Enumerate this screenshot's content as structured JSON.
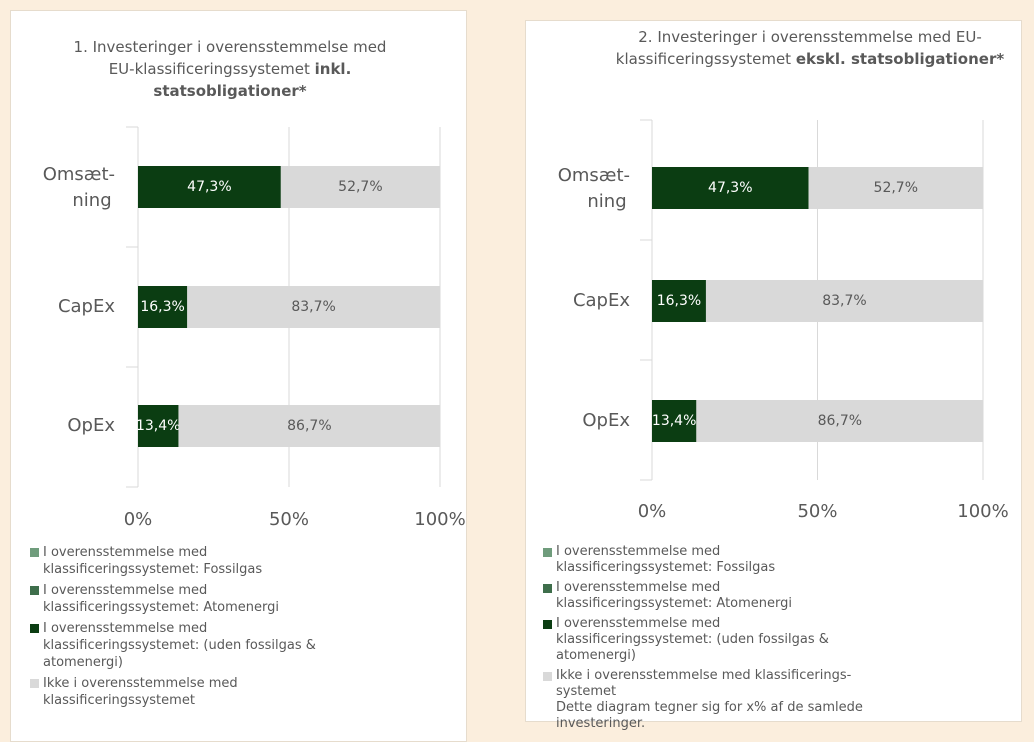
{
  "chart_data": [
    {
      "type": "bar",
      "orientation": "horizontal",
      "stacked": true,
      "title": "1. Investeringer i overensstemmelse med EU-klassificeringssystemet",
      "title_bold": "inkl. statsobligationer*",
      "categories": [
        "Omsæt-ning",
        "CapEx",
        "OpEx"
      ],
      "series": [
        {
          "name": "I overensstemmelse med klassificeringssystemet: Fossilgas",
          "color": "#6f9c7c",
          "values": [
            0,
            0,
            0
          ]
        },
        {
          "name": "I overensstemmelse med klassificeringssystemet: Atomenergi",
          "color": "#3e6e4b",
          "values": [
            0,
            0,
            0
          ]
        },
        {
          "name": "I overensstemmelse med klassificeringssystemet: (uden fossilgas & atomenergi)",
          "color": "#0b3d12",
          "values": [
            47.3,
            16.3,
            13.4
          ],
          "value_labels": [
            "47,3%",
            "16,3%",
            "13,4%"
          ]
        },
        {
          "name": "Ikke i overensstemmelse med klassificeringssystemet",
          "color": "#d9d9d9",
          "values": [
            52.7,
            83.7,
            86.7
          ],
          "value_labels": [
            "52,7%",
            "83,7%",
            "86,7%"
          ]
        }
      ],
      "xlim": [
        0,
        100
      ],
      "xticks": [
        {
          "value": 0,
          "label": "0%"
        },
        {
          "value": 50,
          "label": "50%"
        },
        {
          "value": 100,
          "label": "100%"
        }
      ],
      "grid": true
    },
    {
      "type": "bar",
      "orientation": "horizontal",
      "stacked": true,
      "title": "2. Investeringer i overensstemmelse med EU-klassificeringssystemet",
      "title_bold": "ekskl. statsobligationer*",
      "categories": [
        "Omsæt-ning",
        "CapEx",
        "OpEx"
      ],
      "series": [
        {
          "name": "I overensstemmelse med klassificeringssystemet: Fossilgas",
          "color": "#6f9c7c",
          "values": [
            0,
            0,
            0
          ]
        },
        {
          "name": "I overensstemmelse med klassificeringssystemet: Atomenergi",
          "color": "#3e6e4b",
          "values": [
            0,
            0,
            0
          ]
        },
        {
          "name": "I overensstemmelse med klassificeringssystemet: (uden fossilgas & atomenergi)",
          "color": "#0b3d12",
          "values": [
            47.3,
            16.3,
            13.4
          ],
          "value_labels": [
            "47,3%",
            "16,3%",
            "13,4%"
          ]
        },
        {
          "name": "Ikke i overensstemmelse med klassificerings-systemet",
          "color": "#d9d9d9",
          "values": [
            52.7,
            83.7,
            86.7
          ],
          "value_labels": [
            "52,7%",
            "83,7%",
            "86,7%"
          ]
        }
      ],
      "note": "Dette diagram tegner sig for x% af de samlede investeringer.",
      "xlim": [
        0,
        100
      ],
      "xticks": [
        {
          "value": 0,
          "label": "0%"
        },
        {
          "value": 50,
          "label": "50%"
        },
        {
          "value": 100,
          "label": "100%"
        }
      ],
      "grid": true
    }
  ]
}
